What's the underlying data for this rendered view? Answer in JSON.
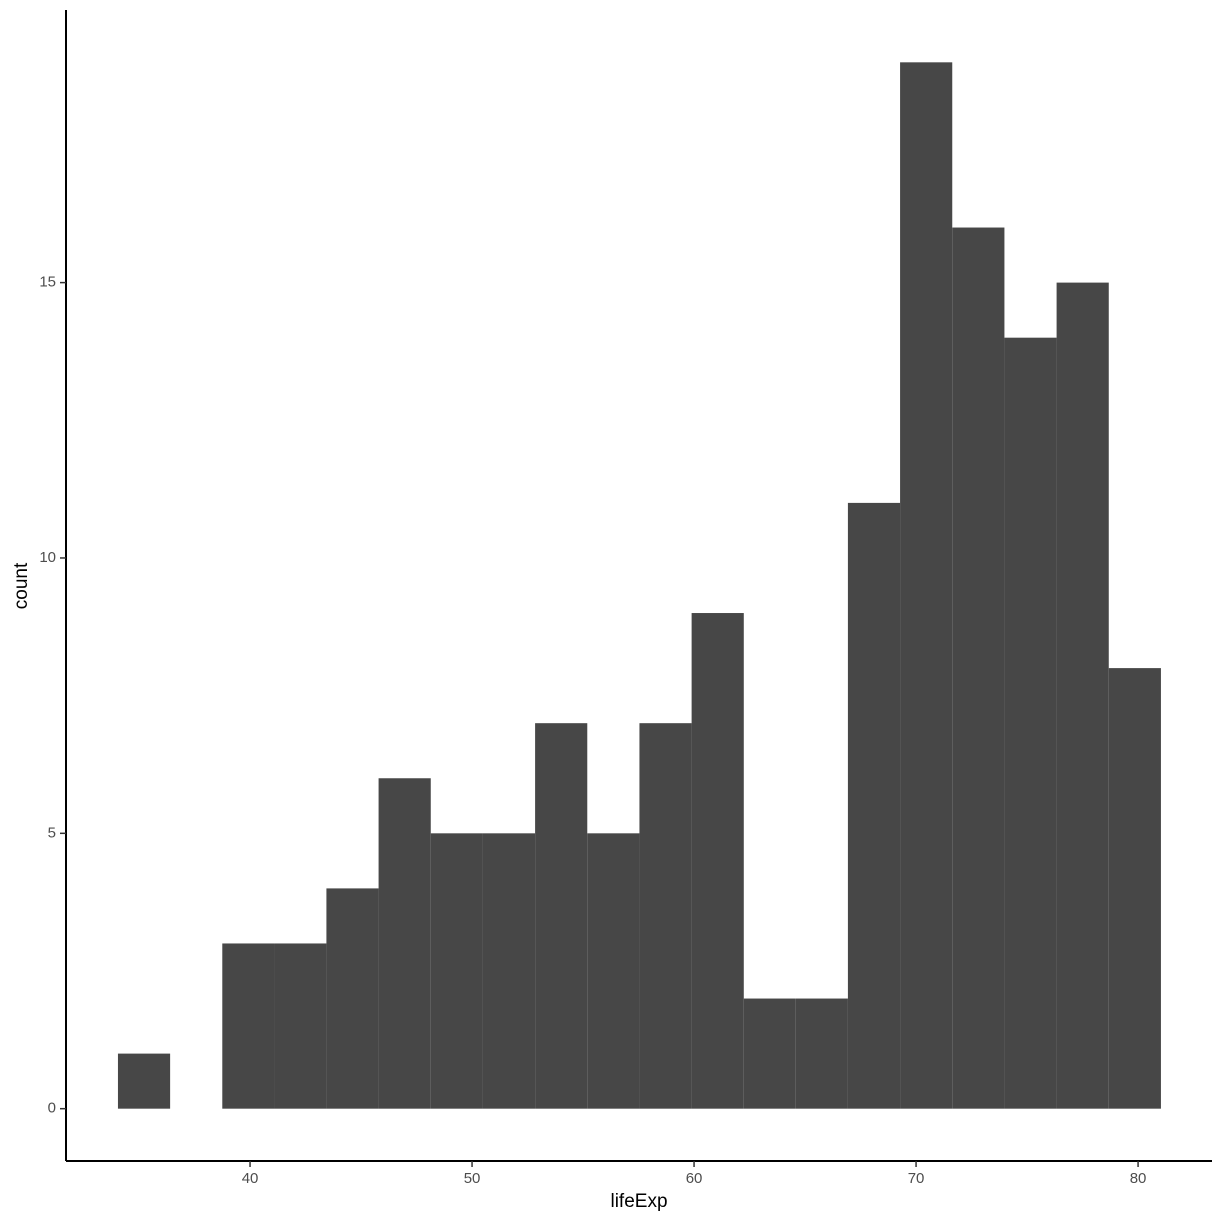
{
  "chart_data": {
    "type": "histogram",
    "x_label": "lifeExp",
    "y_label": "count",
    "bins": [
      34.05,
      36.4,
      38.75,
      41.1,
      43.44,
      45.79,
      48.14,
      50.49,
      52.84,
      55.19,
      57.54,
      59.89,
      62.24,
      64.58,
      66.93,
      69.28,
      71.63,
      73.98,
      76.33,
      78.68,
      81.03
    ],
    "values": [
      1,
      0,
      3,
      3,
      4,
      6,
      5,
      5,
      7,
      5,
      7,
      9,
      2,
      2,
      11,
      19,
      16,
      14,
      15,
      8
    ],
    "color": "#474747",
    "xlim": [
      31.71,
      83.33
    ],
    "xticks": [
      40,
      50,
      60,
      70,
      80
    ],
    "ylim": [
      -0.95,
      19.95
    ],
    "yticks": [
      0,
      5,
      10,
      15
    ],
    "grid": false
  }
}
